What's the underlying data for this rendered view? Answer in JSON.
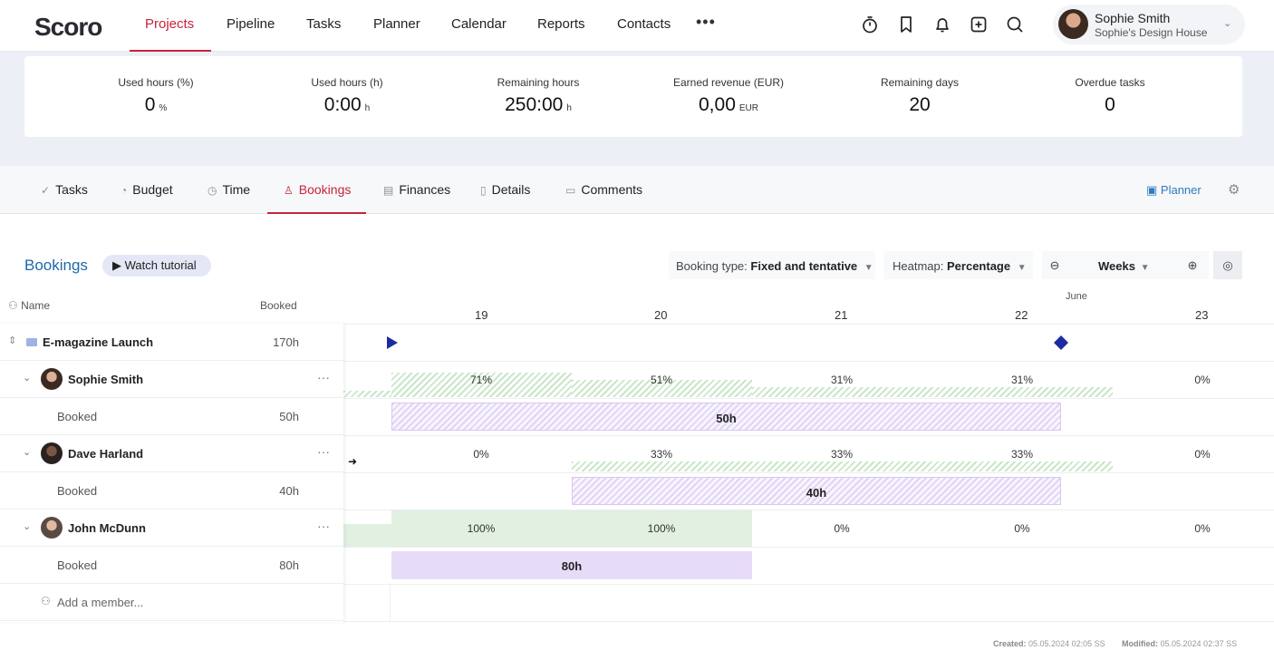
{
  "app": {
    "logo": "Scoro"
  },
  "nav": {
    "items": [
      "Projects",
      "Pipeline",
      "Tasks",
      "Planner",
      "Calendar",
      "Reports",
      "Contacts"
    ],
    "active": "Projects",
    "more": "•••"
  },
  "user": {
    "name": "Sophie Smith",
    "company": "Sophie's Design House"
  },
  "kpis": [
    {
      "label": "Used hours (%)",
      "value": "0",
      "unit": "%"
    },
    {
      "label": "Used hours (h)",
      "value": "0:00",
      "unit": "h"
    },
    {
      "label": "Remaining hours",
      "value": "250:00",
      "unit": "h"
    },
    {
      "label": "Earned revenue (EUR)",
      "value": "0,00",
      "unit": "EUR"
    },
    {
      "label": "Remaining days",
      "value": "20",
      "unit": ""
    },
    {
      "label": "Overdue tasks",
      "value": "0",
      "unit": ""
    }
  ],
  "tabs": [
    {
      "label": "Tasks",
      "icon": "✓"
    },
    {
      "label": "Budget",
      "icon": "◔"
    },
    {
      "label": "Time",
      "icon": "◷"
    },
    {
      "label": "Bookings",
      "icon": "♙"
    },
    {
      "label": "Finances",
      "icon": "▤"
    },
    {
      "label": "Details",
      "icon": "▯"
    },
    {
      "label": "Comments",
      "icon": "▭"
    }
  ],
  "planner_link": "Planner",
  "bookings": {
    "title": "Bookings",
    "watch": "Watch tutorial",
    "booking_type_label": "Booking type:",
    "booking_type_value": "Fixed and tentative",
    "heatmap_label": "Heatmap:",
    "heatmap_value": "Percentage",
    "zoom": "Weeks"
  },
  "grid": {
    "col_name": "Name",
    "col_booked": "Booked",
    "project": {
      "name": "E-magazine Launch",
      "booked": "170h"
    },
    "members": [
      {
        "name": "Sophie Smith",
        "sub_label": "Booked",
        "sub_value": "50h",
        "pcts": [
          "71%",
          "51%",
          "31%",
          "31%",
          "0%"
        ],
        "bar_label": "50h",
        "bar_type": "tentative"
      },
      {
        "name": "Dave Harland",
        "sub_label": "Booked",
        "sub_value": "40h",
        "pcts": [
          "0%",
          "33%",
          "33%",
          "33%",
          "0%"
        ],
        "bar_label": "40h",
        "bar_type": "tentative"
      },
      {
        "name": "John McDunn",
        "sub_label": "Booked",
        "sub_value": "80h",
        "pcts": [
          "100%",
          "100%",
          "0%",
          "0%",
          "0%"
        ],
        "bar_label": "80h",
        "bar_type": "fixed"
      }
    ],
    "add_member": "Add a member..."
  },
  "timeline": {
    "month": "June",
    "weeks": [
      "19",
      "20",
      "21",
      "22",
      "23"
    ]
  },
  "footer": {
    "created_label": "Created:",
    "created_value": "05.05.2024 02:05 SS",
    "modified_label": "Modified:",
    "modified_value": "05.05.2024 02:37 SS"
  },
  "colors": {
    "accent": "#c8243a",
    "link": "#1f68aa",
    "milestone": "#1d2ba0"
  }
}
